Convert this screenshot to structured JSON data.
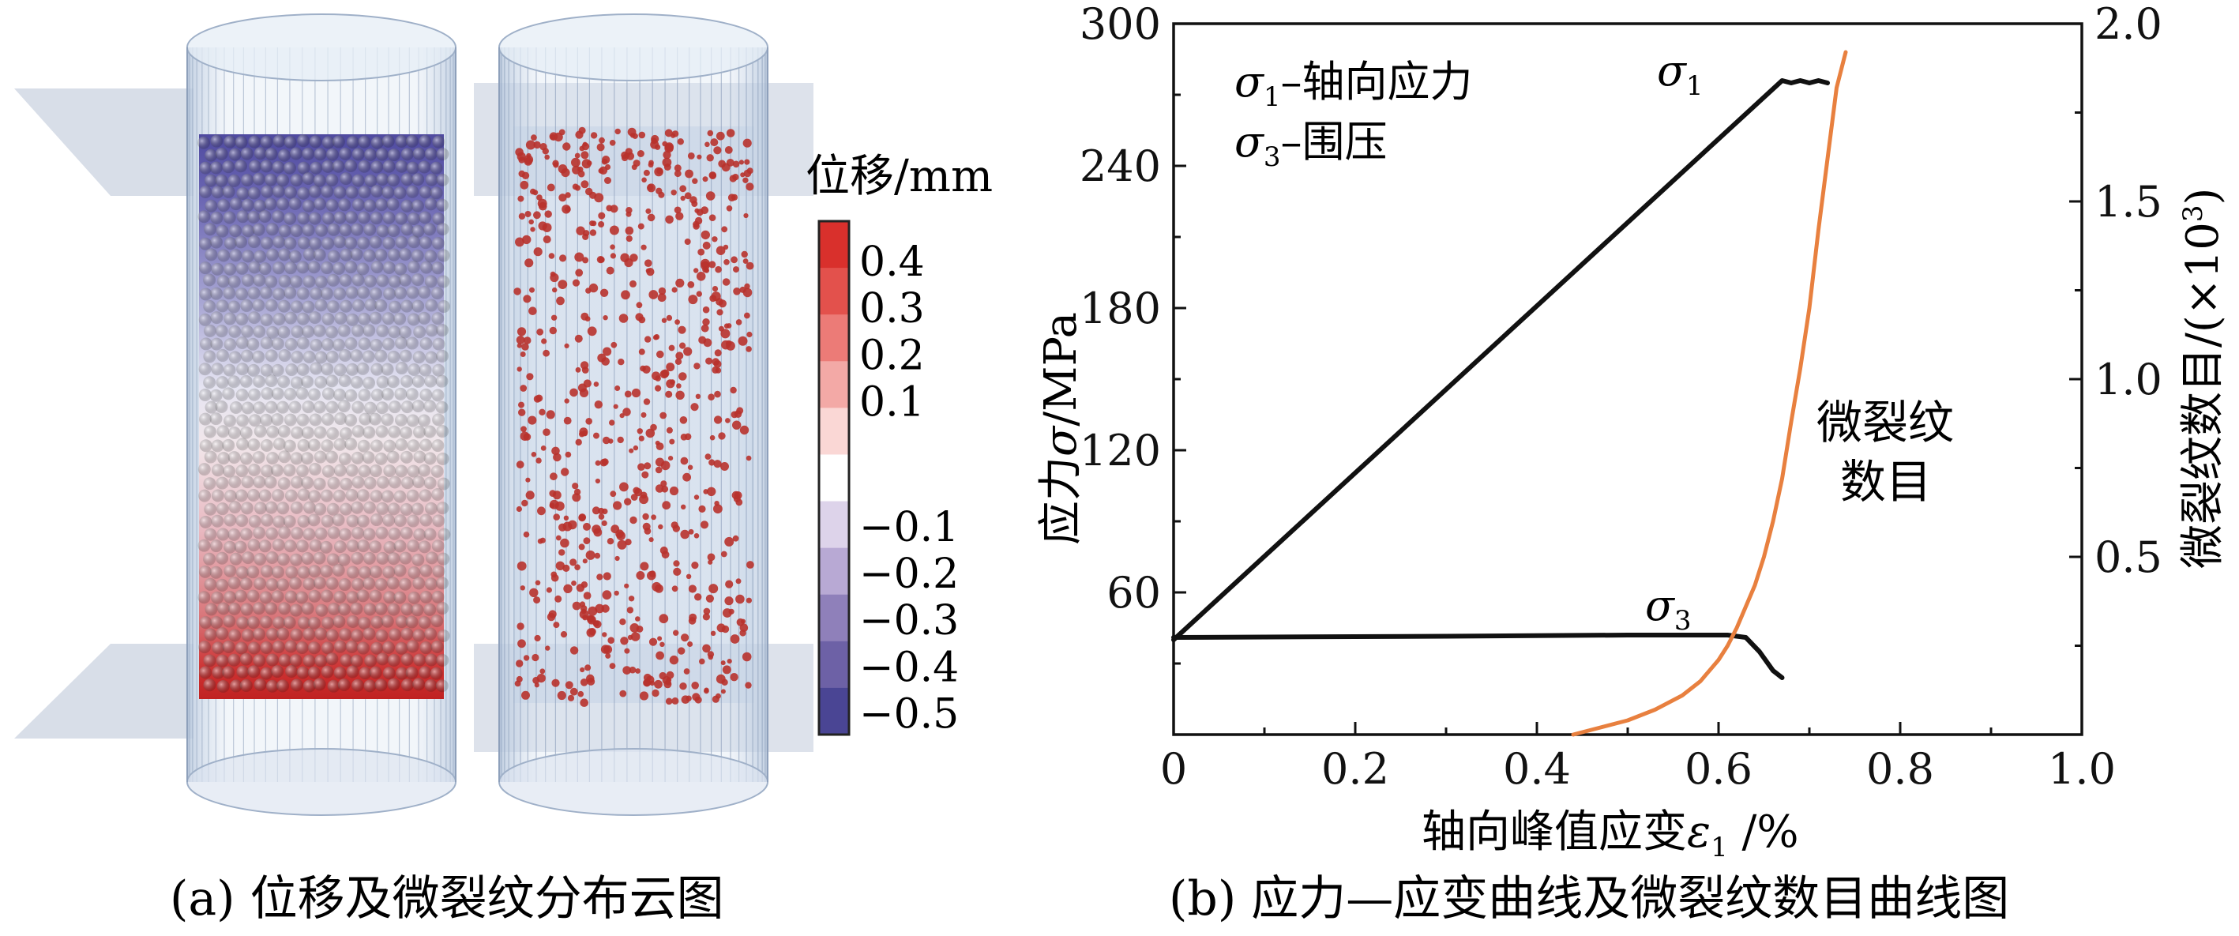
{
  "panel_a": {
    "caption": "(a) 位移及微裂纹分布云图",
    "colorbar": {
      "title": "位移/mm",
      "tick_labels": [
        "0.4",
        "0.3",
        "0.2",
        "0.1",
        "−0.1",
        "−0.2",
        "−0.3",
        "−0.4",
        "−0.5"
      ],
      "colors": [
        "#d9302c",
        "#e3514c",
        "#ec7b77",
        "#f3a9a6",
        "#fad7d5",
        "#ffffff",
        "#ddd3ea",
        "#b8a9d4",
        "#8f80ba",
        "#6d61a6",
        "#4a4594"
      ]
    }
  },
  "panel_b": {
    "caption": "(b) 应力—应变曲线及微裂纹数目曲线图",
    "annotations": {
      "legend_s1_sym": "σ",
      "legend_s1_sub": "1",
      "legend_s1_text": "–轴向应力",
      "legend_s3_sym": "σ",
      "legend_s3_sub": "3",
      "legend_s3_text": "–围压",
      "s1_label_sym": "σ",
      "s1_label_sub": "1",
      "s3_label_sym": "σ",
      "s3_label_sub": "3",
      "crack_label_line1": "微裂纹",
      "crack_label_line2": "数目"
    },
    "axis_labels": {
      "x_main": "轴向峰值应变",
      "x_sym": "ε",
      "x_sub": "1",
      "x_unit": " /%",
      "y_left_main": "应力",
      "y_left_sym": "σ",
      "y_left_unit": "/MPa",
      "y_right_main": "微裂纹数目/(×10",
      "y_right_sup": "3",
      "y_right_close": ")"
    }
  },
  "chart_data": {
    "type": "line",
    "x_ticks": [
      "0",
      "0.2",
      "0.4",
      "0.6",
      "0.8",
      "1.0"
    ],
    "y_left_ticks": [
      "60",
      "120",
      "180",
      "240",
      "300"
    ],
    "y_right_ticks": [
      "0.5",
      "1.0",
      "1.5",
      "2.0"
    ],
    "xlim": [
      0,
      1.0
    ],
    "ylim_left": [
      0,
      300
    ],
    "ylim_right": [
      0,
      2.0
    ],
    "grid": false,
    "colors": {
      "stress": "#111111",
      "cracks": "#e8803f"
    },
    "series": [
      {
        "axis": "left",
        "x": [
          0,
          0.67,
          0.68,
          0.69,
          0.7,
          0.71,
          0.72
        ],
        "y": [
          40,
          276,
          275,
          276,
          275,
          276,
          275
        ]
      },
      {
        "axis": "left",
        "x": [
          0,
          0.3,
          0.5,
          0.61,
          0.63,
          0.645,
          0.66,
          0.67
        ],
        "y": [
          41,
          41.5,
          42,
          42,
          41,
          35,
          27,
          24
        ]
      },
      {
        "axis": "right",
        "x": [
          0.44,
          0.47,
          0.5,
          0.53,
          0.56,
          0.58,
          0.6,
          0.61,
          0.62,
          0.63,
          0.64,
          0.65,
          0.66,
          0.67,
          0.68,
          0.69,
          0.7,
          0.71,
          0.72,
          0.73,
          0.74
        ],
        "y": [
          0.0,
          0.02,
          0.04,
          0.07,
          0.11,
          0.15,
          0.21,
          0.25,
          0.3,
          0.36,
          0.42,
          0.5,
          0.6,
          0.72,
          0.88,
          1.03,
          1.2,
          1.42,
          1.62,
          1.82,
          1.92
        ]
      }
    ]
  }
}
